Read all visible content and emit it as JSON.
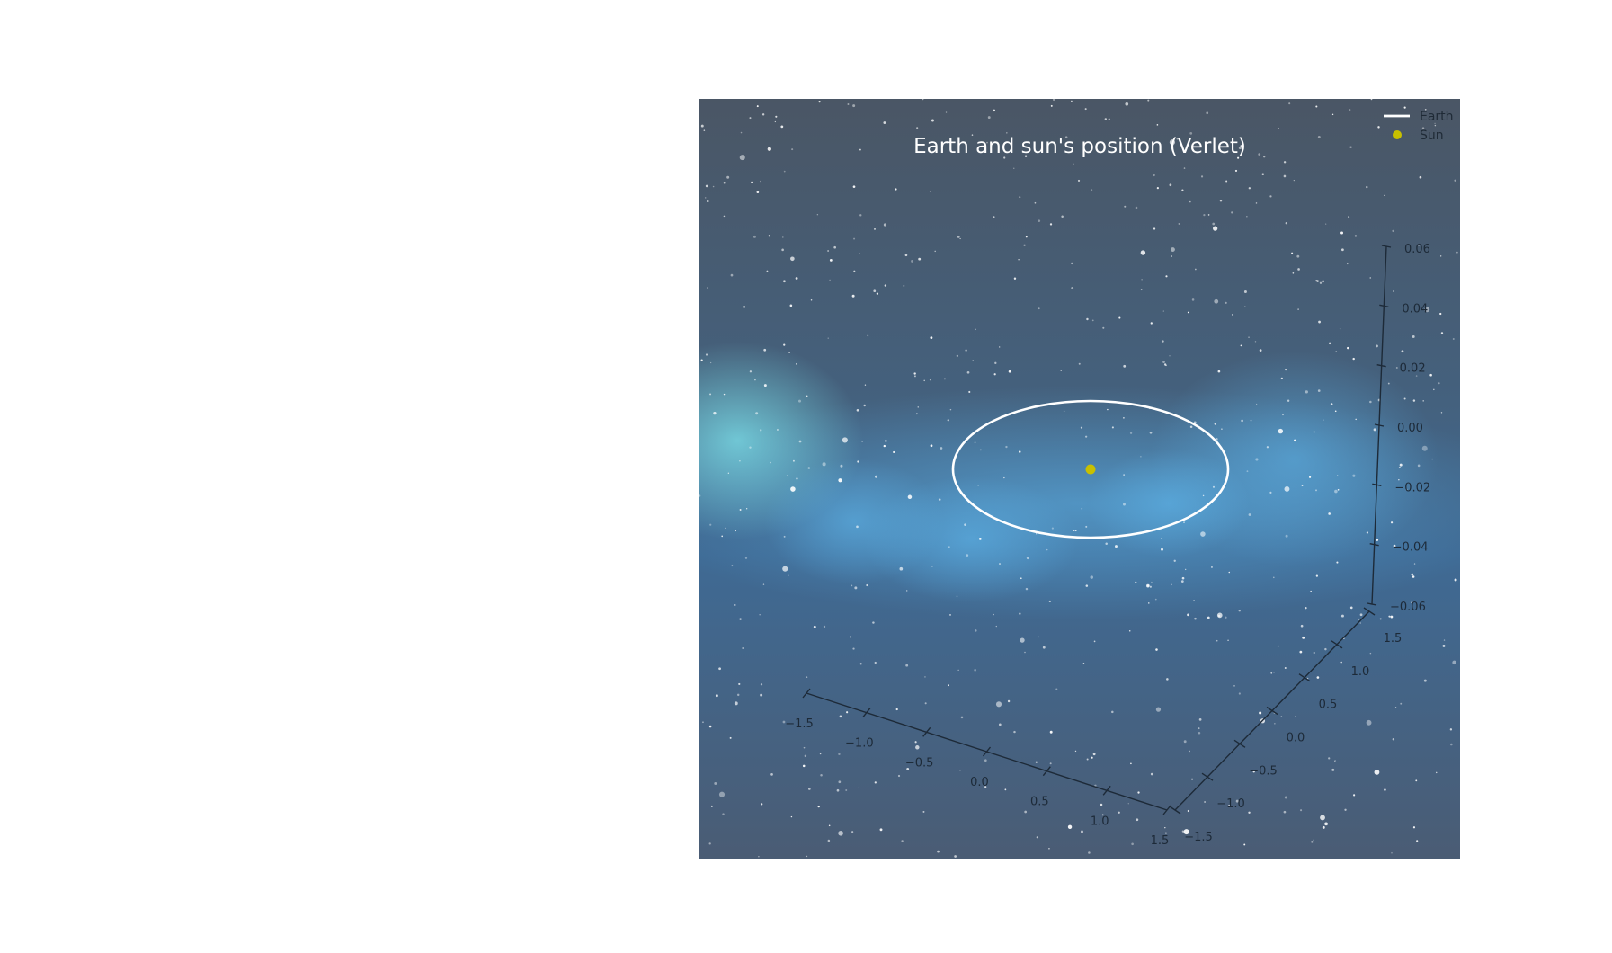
{
  "chart_data": {
    "type": "line",
    "projection": "3d",
    "title": "Earth and sun's position (Verlet)",
    "legend": {
      "placement": "top-right",
      "entries": [
        {
          "label": "Earth",
          "marker": "line",
          "color": "#ffffff"
        },
        {
          "label": "Sun",
          "marker": "dot",
          "color": "#c8c000"
        }
      ]
    },
    "axes": {
      "x": {
        "ticks": [
          -1.5,
          -1.0,
          -0.5,
          0.0,
          0.5,
          1.0,
          1.5
        ],
        "tick_labels": [
          "−1.5",
          "−1.0",
          "−0.5",
          "0.0",
          "0.5",
          "1.0",
          "1.5"
        ],
        "range": [
          -1.5,
          1.5
        ]
      },
      "y": {
        "ticks": [
          -1.5,
          -1.0,
          -0.5,
          0.0,
          0.5,
          1.0,
          1.5
        ],
        "tick_labels": [
          "−1.5",
          "−1.0",
          "−0.5",
          "0.0",
          "0.5",
          "1.0",
          "1.5"
        ],
        "range": [
          -1.5,
          1.5
        ]
      },
      "z": {
        "ticks": [
          -0.06,
          -0.04,
          -0.02,
          0.0,
          0.02,
          0.04,
          0.06
        ],
        "tick_labels": [
          "−0.06",
          "−0.04",
          "−0.02",
          "0.00",
          "0.02",
          "0.04",
          "0.06"
        ],
        "range": [
          -0.06,
          0.06
        ]
      }
    },
    "series": [
      {
        "name": "Earth",
        "kind": "orbit",
        "shape": "circle",
        "center": [
          0,
          0,
          0
        ],
        "radius": 1.0,
        "color": "#ffffff"
      },
      {
        "name": "Sun",
        "kind": "point",
        "position": [
          0,
          0,
          0
        ],
        "color": "#c8c000"
      }
    ],
    "background": "starfield"
  }
}
